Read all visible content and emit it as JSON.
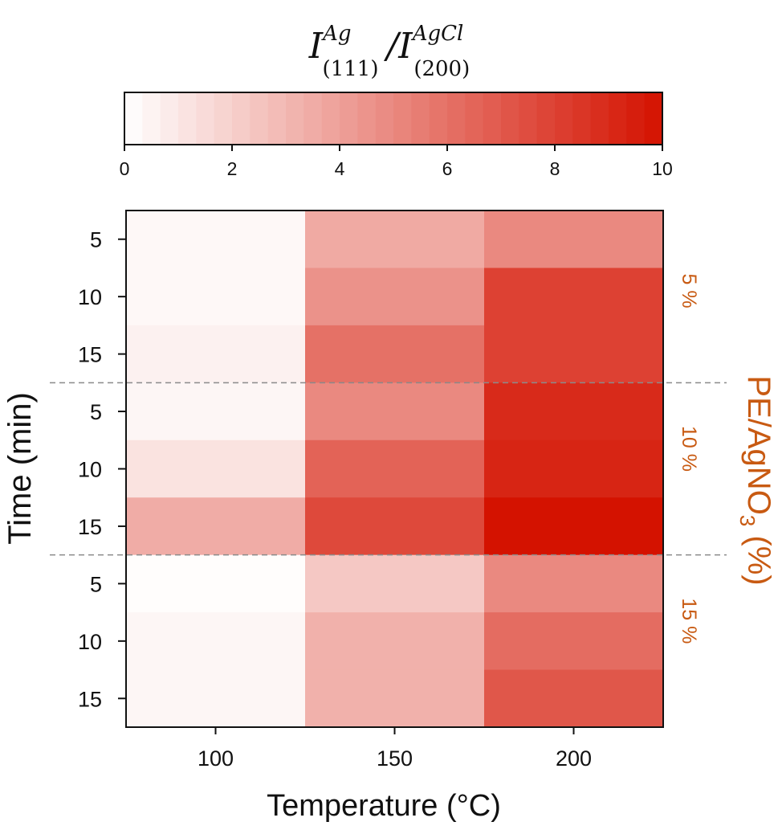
{
  "chart_data": {
    "type": "heatmap",
    "colorbar": {
      "title": {
        "numerator_base": "I",
        "numerator_sup": "Ag",
        "numerator_sub": "(111)",
        "divider": "/",
        "denominator_base": "I",
        "denominator_sup": "AgCl",
        "denominator_sub": "(200)"
      },
      "range": [
        0,
        10
      ],
      "ticks": [
        "0",
        "2",
        "4",
        "6",
        "8",
        "10"
      ],
      "color_min": "#ffffff",
      "color_max": "#d41200"
    },
    "xlabel": "Temperature (°C)",
    "x_categories": [
      "100",
      "150",
      "200"
    ],
    "ylabel": "Time (min)",
    "y_categories": [
      "5",
      "10",
      "15",
      "5",
      "10",
      "15",
      "5",
      "10",
      "15"
    ],
    "group_axis_label": {
      "prefix": "PE/AgNO",
      "subscript": "3",
      "suffix": " (%)"
    },
    "groups": [
      "5 %",
      "10 %",
      "15 %"
    ],
    "group_color": "#c85a12",
    "values": [
      [
        0.3,
        3.6,
        5.0
      ],
      [
        0.3,
        4.6,
        8.0
      ],
      [
        0.6,
        6.0,
        8.0
      ],
      [
        0.4,
        5.0,
        9.0
      ],
      [
        1.2,
        6.6,
        9.2
      ],
      [
        3.5,
        7.7,
        10.0
      ],
      [
        0.1,
        2.3,
        5.0
      ],
      [
        0.4,
        3.3,
        6.2
      ],
      [
        0.4,
        3.3,
        7.1
      ]
    ]
  }
}
